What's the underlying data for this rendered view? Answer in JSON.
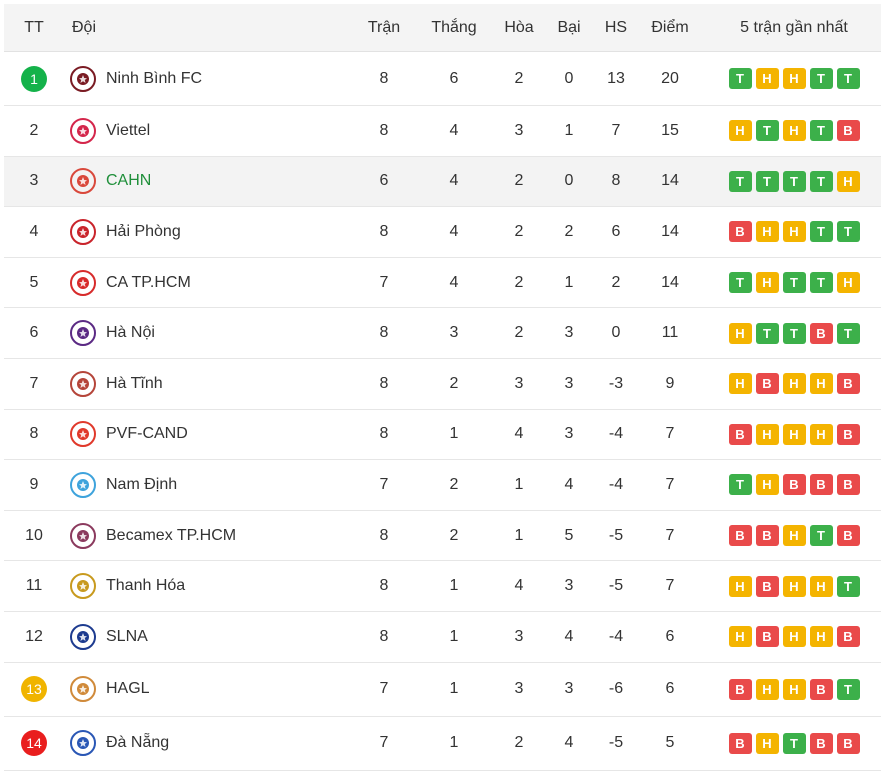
{
  "header": {
    "rank": "TT",
    "team": "Đội",
    "played": "Trận",
    "won": "Thắng",
    "draw": "Hòa",
    "lost": "Bại",
    "gd": "HS",
    "pts": "Điểm",
    "form": "5 trận gần nhất"
  },
  "colors": {
    "T": "#3cb04a",
    "H": "#f4b400",
    "B": "#e94a4a",
    "rank_green": "#14b24a",
    "rank_yellow": "#f0b400",
    "rank_red": "#e91e1e"
  },
  "rows": [
    {
      "rank": "1",
      "team": "Ninh Bình FC",
      "played": "8",
      "won": "6",
      "draw": "2",
      "lost": "0",
      "gd": "13",
      "pts": "20",
      "form": [
        "T",
        "H",
        "H",
        "T",
        "T"
      ],
      "logo": "ninh-binh-logo-icon",
      "logo_color": "#7a1b23",
      "rank_badge": "green"
    },
    {
      "rank": "2",
      "team": "Viettel",
      "played": "8",
      "won": "4",
      "draw": "3",
      "lost": "1",
      "gd": "7",
      "pts": "15",
      "form": [
        "H",
        "T",
        "H",
        "T",
        "B"
      ],
      "logo": "viettel-logo-icon",
      "logo_color": "#d4264b"
    },
    {
      "rank": "3",
      "team": "CAHN",
      "played": "6",
      "won": "4",
      "draw": "2",
      "lost": "0",
      "gd": "8",
      "pts": "14",
      "form": [
        "T",
        "T",
        "T",
        "T",
        "H"
      ],
      "logo": "cahn-logo-icon",
      "logo_color": "#d9483b",
      "highlight": true
    },
    {
      "rank": "4",
      "team": "Hải Phòng",
      "played": "8",
      "won": "4",
      "draw": "2",
      "lost": "2",
      "gd": "6",
      "pts": "14",
      "form": [
        "B",
        "H",
        "H",
        "T",
        "T"
      ],
      "logo": "hai-phong-logo-icon",
      "logo_color": "#c9242b"
    },
    {
      "rank": "5",
      "team": "CA TP.HCM",
      "played": "7",
      "won": "4",
      "draw": "2",
      "lost": "1",
      "gd": "2",
      "pts": "14",
      "form": [
        "T",
        "H",
        "T",
        "T",
        "H"
      ],
      "logo": "ca-tphcm-logo-icon",
      "logo_color": "#d72b2b"
    },
    {
      "rank": "6",
      "team": "Hà Nội",
      "played": "8",
      "won": "3",
      "draw": "2",
      "lost": "3",
      "gd": "0",
      "pts": "11",
      "form": [
        "H",
        "T",
        "T",
        "B",
        "T"
      ],
      "logo": "ha-noi-logo-icon",
      "logo_color": "#5b2a84"
    },
    {
      "rank": "7",
      "team": "Hà Tĩnh",
      "played": "8",
      "won": "2",
      "draw": "3",
      "lost": "3",
      "gd": "-3",
      "pts": "9",
      "form": [
        "H",
        "B",
        "H",
        "H",
        "B"
      ],
      "logo": "ha-tinh-logo-icon",
      "logo_color": "#b5453a"
    },
    {
      "rank": "8",
      "team": "PVF-CAND",
      "played": "8",
      "won": "1",
      "draw": "4",
      "lost": "3",
      "gd": "-4",
      "pts": "7",
      "form": [
        "B",
        "H",
        "H",
        "H",
        "B"
      ],
      "logo": "pvf-cand-logo-icon",
      "logo_color": "#e0392b"
    },
    {
      "rank": "9",
      "team": "Nam Định",
      "played": "7",
      "won": "2",
      "draw": "1",
      "lost": "4",
      "gd": "-4",
      "pts": "7",
      "form": [
        "T",
        "H",
        "B",
        "B",
        "B"
      ],
      "logo": "nam-dinh-logo-icon",
      "logo_color": "#3ea3dc"
    },
    {
      "rank": "10",
      "team": "Becamex TP.HCM",
      "played": "8",
      "won": "2",
      "draw": "1",
      "lost": "5",
      "gd": "-5",
      "pts": "7",
      "form": [
        "B",
        "B",
        "H",
        "T",
        "B"
      ],
      "logo": "becamex-logo-icon",
      "logo_color": "#8b3a5e"
    },
    {
      "rank": "11",
      "team": "Thanh Hóa",
      "played": "8",
      "won": "1",
      "draw": "4",
      "lost": "3",
      "gd": "-5",
      "pts": "7",
      "form": [
        "H",
        "B",
        "H",
        "H",
        "T"
      ],
      "logo": "thanh-hoa-logo-icon",
      "logo_color": "#c89a1e"
    },
    {
      "rank": "12",
      "team": "SLNA",
      "played": "8",
      "won": "1",
      "draw": "3",
      "lost": "4",
      "gd": "-4",
      "pts": "6",
      "form": [
        "H",
        "B",
        "H",
        "H",
        "B"
      ],
      "logo": "slna-logo-icon",
      "logo_color": "#1d3b8f"
    },
    {
      "rank": "13",
      "team": "HAGL",
      "played": "7",
      "won": "1",
      "draw": "3",
      "lost": "3",
      "gd": "-6",
      "pts": "6",
      "form": [
        "B",
        "H",
        "H",
        "B",
        "T"
      ],
      "logo": "hagl-logo-icon",
      "logo_color": "#d08a3a",
      "rank_badge": "yellow"
    },
    {
      "rank": "14",
      "team": "Đà Nẵng",
      "played": "7",
      "won": "1",
      "draw": "2",
      "lost": "4",
      "gd": "-5",
      "pts": "5",
      "form": [
        "B",
        "H",
        "T",
        "B",
        "B"
      ],
      "logo": "da-nang-logo-icon",
      "logo_color": "#2a57b5",
      "rank_badge": "red"
    }
  ]
}
